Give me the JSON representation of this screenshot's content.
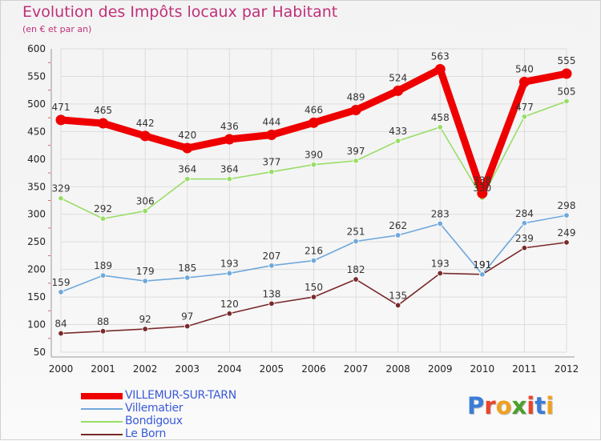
{
  "title": "Evolution des Impôts locaux par Habitant",
  "subtitle": "(en € et par an)",
  "logo": {
    "text": "Proxiti",
    "colors": [
      "#3a7dd8",
      "#e8452c",
      "#f0a020",
      "#4aa02c",
      "#e8452c",
      "#3a7dd8",
      "#f0a020"
    ]
  },
  "chart_data": {
    "type": "line",
    "x": [
      "2000",
      "2001",
      "2002",
      "2003",
      "2004",
      "2005",
      "2006",
      "2007",
      "2008",
      "2009",
      "2010",
      "2011",
      "2012"
    ],
    "ylim": [
      50,
      600
    ],
    "yticks": [
      "50",
      "100",
      "150",
      "200",
      "250",
      "300",
      "350",
      "400",
      "450",
      "500",
      "550",
      "600"
    ],
    "grid": true,
    "legend_position": "bottom-left",
    "series": [
      {
        "name": "VILLEMUR-SUR-TARN",
        "color": "#ee0000",
        "values": [
          471,
          465,
          442,
          420,
          436,
          444,
          466,
          489,
          524,
          563,
          338,
          540,
          555
        ],
        "labels": [
          "471",
          "465",
          "442",
          "420",
          "436",
          "444",
          "466",
          "489",
          "524",
          "563",
          "338",
          "540",
          "555"
        ]
      },
      {
        "name": "Villematier",
        "color": "#6fa8dc",
        "values": [
          159,
          189,
          179,
          185,
          193,
          207,
          216,
          251,
          262,
          283,
          191,
          284,
          298
        ],
        "labels": [
          "159",
          "189",
          "179",
          "185",
          "193",
          "207",
          "216",
          "251",
          "262",
          "283",
          "191",
          "284",
          "298"
        ]
      },
      {
        "name": "Bondigoux",
        "color": "#99dd66",
        "values": [
          329,
          292,
          306,
          364,
          364,
          377,
          390,
          397,
          433,
          458,
          330,
          477,
          505
        ],
        "labels": [
          "329",
          "292",
          "306",
          "364",
          "364",
          "377",
          "390",
          "397",
          "433",
          "458",
          "330",
          "477",
          "505"
        ]
      },
      {
        "name": "Le Born",
        "color": "#7a2a2a",
        "values": [
          84,
          88,
          92,
          97,
          120,
          138,
          150,
          182,
          135,
          193,
          191,
          239,
          249
        ],
        "labels": [
          "84",
          "88",
          "92",
          "97",
          "120",
          "138",
          "150",
          "182",
          "135",
          "193",
          "191",
          "239",
          "249"
        ]
      }
    ]
  }
}
